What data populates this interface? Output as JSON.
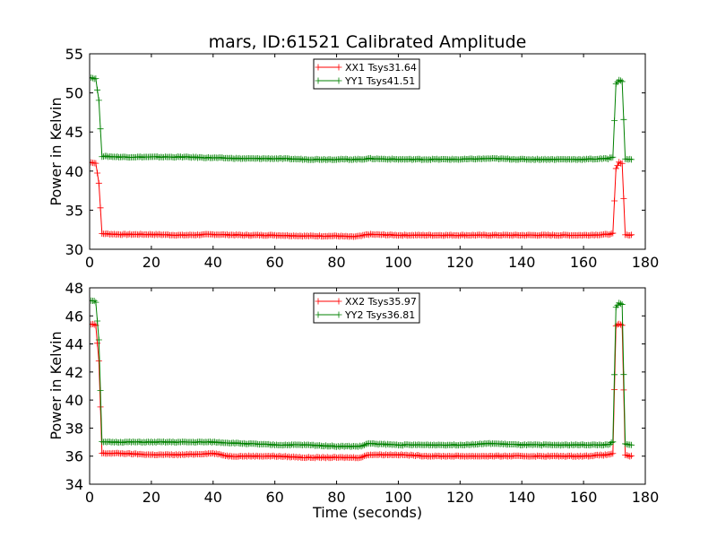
{
  "chart_data": [
    {
      "type": "line",
      "title": "mars, ID:61521 Calibrated Amplitude",
      "xlabel": "",
      "ylabel": "Power in Kelvin",
      "xlim": [
        0,
        180
      ],
      "ylim": [
        30,
        55
      ],
      "xticks": [
        "0",
        "20",
        "40",
        "60",
        "80",
        "100",
        "120",
        "140",
        "160",
        "180"
      ],
      "yticks": [
        "30",
        "35",
        "40",
        "45",
        "50",
        "55"
      ],
      "grid": false,
      "legend_position": "top-center",
      "series": [
        {
          "name": "XX1 Tsys31.64",
          "color": "#ff0000",
          "x": [
            0,
            1,
            2,
            3,
            4,
            10,
            20,
            30,
            40,
            50,
            60,
            70,
            80,
            85,
            88,
            90,
            100,
            110,
            120,
            130,
            140,
            150,
            160,
            168,
            169.5,
            170.5,
            171.5,
            172.5,
            173.5,
            174.5,
            175.5
          ],
          "y": [
            41.1,
            41.1,
            41.0,
            38.5,
            32.0,
            31.9,
            31.9,
            31.8,
            31.9,
            31.8,
            31.8,
            31.7,
            31.7,
            31.6,
            31.7,
            31.9,
            31.8,
            31.8,
            31.8,
            31.8,
            31.8,
            31.8,
            31.8,
            31.9,
            32.0,
            40.3,
            41.1,
            41.0,
            31.9,
            31.8,
            31.8
          ]
        },
        {
          "name": "YY1 Tsys41.51",
          "color": "#008000",
          "x": [
            0,
            1,
            2,
            3,
            4,
            10,
            20,
            30,
            40,
            50,
            60,
            70,
            80,
            88,
            90,
            100,
            110,
            120,
            130,
            140,
            150,
            160,
            168,
            169.5,
            170.5,
            171.5,
            172.5,
            173.5,
            174.5,
            175.5
          ],
          "y": [
            52.0,
            51.9,
            51.8,
            49.0,
            41.9,
            41.8,
            41.8,
            41.8,
            41.7,
            41.6,
            41.6,
            41.5,
            41.5,
            41.5,
            41.6,
            41.5,
            41.5,
            41.5,
            41.6,
            41.5,
            41.5,
            41.5,
            41.6,
            41.8,
            51.2,
            51.6,
            51.5,
            41.6,
            41.5,
            41.5
          ]
        }
      ]
    },
    {
      "type": "line",
      "title": "",
      "xlabel": "Time (seconds)",
      "ylabel": "Power in Kelvin",
      "xlim": [
        0,
        180
      ],
      "ylim": [
        34,
        48
      ],
      "xticks": [
        "0",
        "20",
        "40",
        "60",
        "80",
        "100",
        "120",
        "140",
        "160",
        "180"
      ],
      "yticks": [
        "34",
        "36",
        "38",
        "40",
        "42",
        "44",
        "46",
        "48"
      ],
      "grid": false,
      "legend_position": "top-center",
      "series": [
        {
          "name": "XX2 Tsys35.97",
          "color": "#ff0000",
          "x": [
            0,
            1,
            2,
            3,
            4,
            10,
            20,
            30,
            40,
            45,
            50,
            60,
            70,
            80,
            85,
            88,
            90,
            100,
            110,
            120,
            130,
            140,
            150,
            160,
            168,
            169.5,
            170.5,
            171.5,
            172.5,
            173.5,
            174.5,
            175.5
          ],
          "y": [
            45.4,
            45.4,
            45.3,
            42.8,
            36.2,
            36.2,
            36.1,
            36.1,
            36.2,
            36.0,
            36.0,
            36.0,
            35.9,
            35.9,
            35.9,
            35.9,
            36.1,
            36.1,
            36.0,
            36.0,
            36.0,
            36.0,
            36.0,
            36.0,
            36.1,
            36.2,
            45.3,
            45.4,
            45.3,
            36.1,
            36.0,
            36.0
          ]
        },
        {
          "name": "YY2 Tsys36.81",
          "color": "#008000",
          "x": [
            0,
            1,
            2,
            3,
            4,
            10,
            20,
            30,
            40,
            50,
            60,
            70,
            80,
            88,
            90,
            100,
            110,
            120,
            130,
            140,
            150,
            160,
            168,
            169.5,
            170.5,
            171.5,
            172.5,
            173.5,
            174.5,
            175.5
          ],
          "y": [
            47.1,
            47.1,
            47.0,
            44.3,
            37.0,
            37.0,
            37.0,
            37.0,
            37.0,
            36.9,
            36.8,
            36.8,
            36.7,
            36.7,
            36.9,
            36.8,
            36.8,
            36.8,
            36.9,
            36.8,
            36.8,
            36.8,
            36.8,
            37.0,
            46.6,
            46.9,
            46.8,
            36.9,
            36.8,
            36.8
          ]
        }
      ]
    }
  ]
}
